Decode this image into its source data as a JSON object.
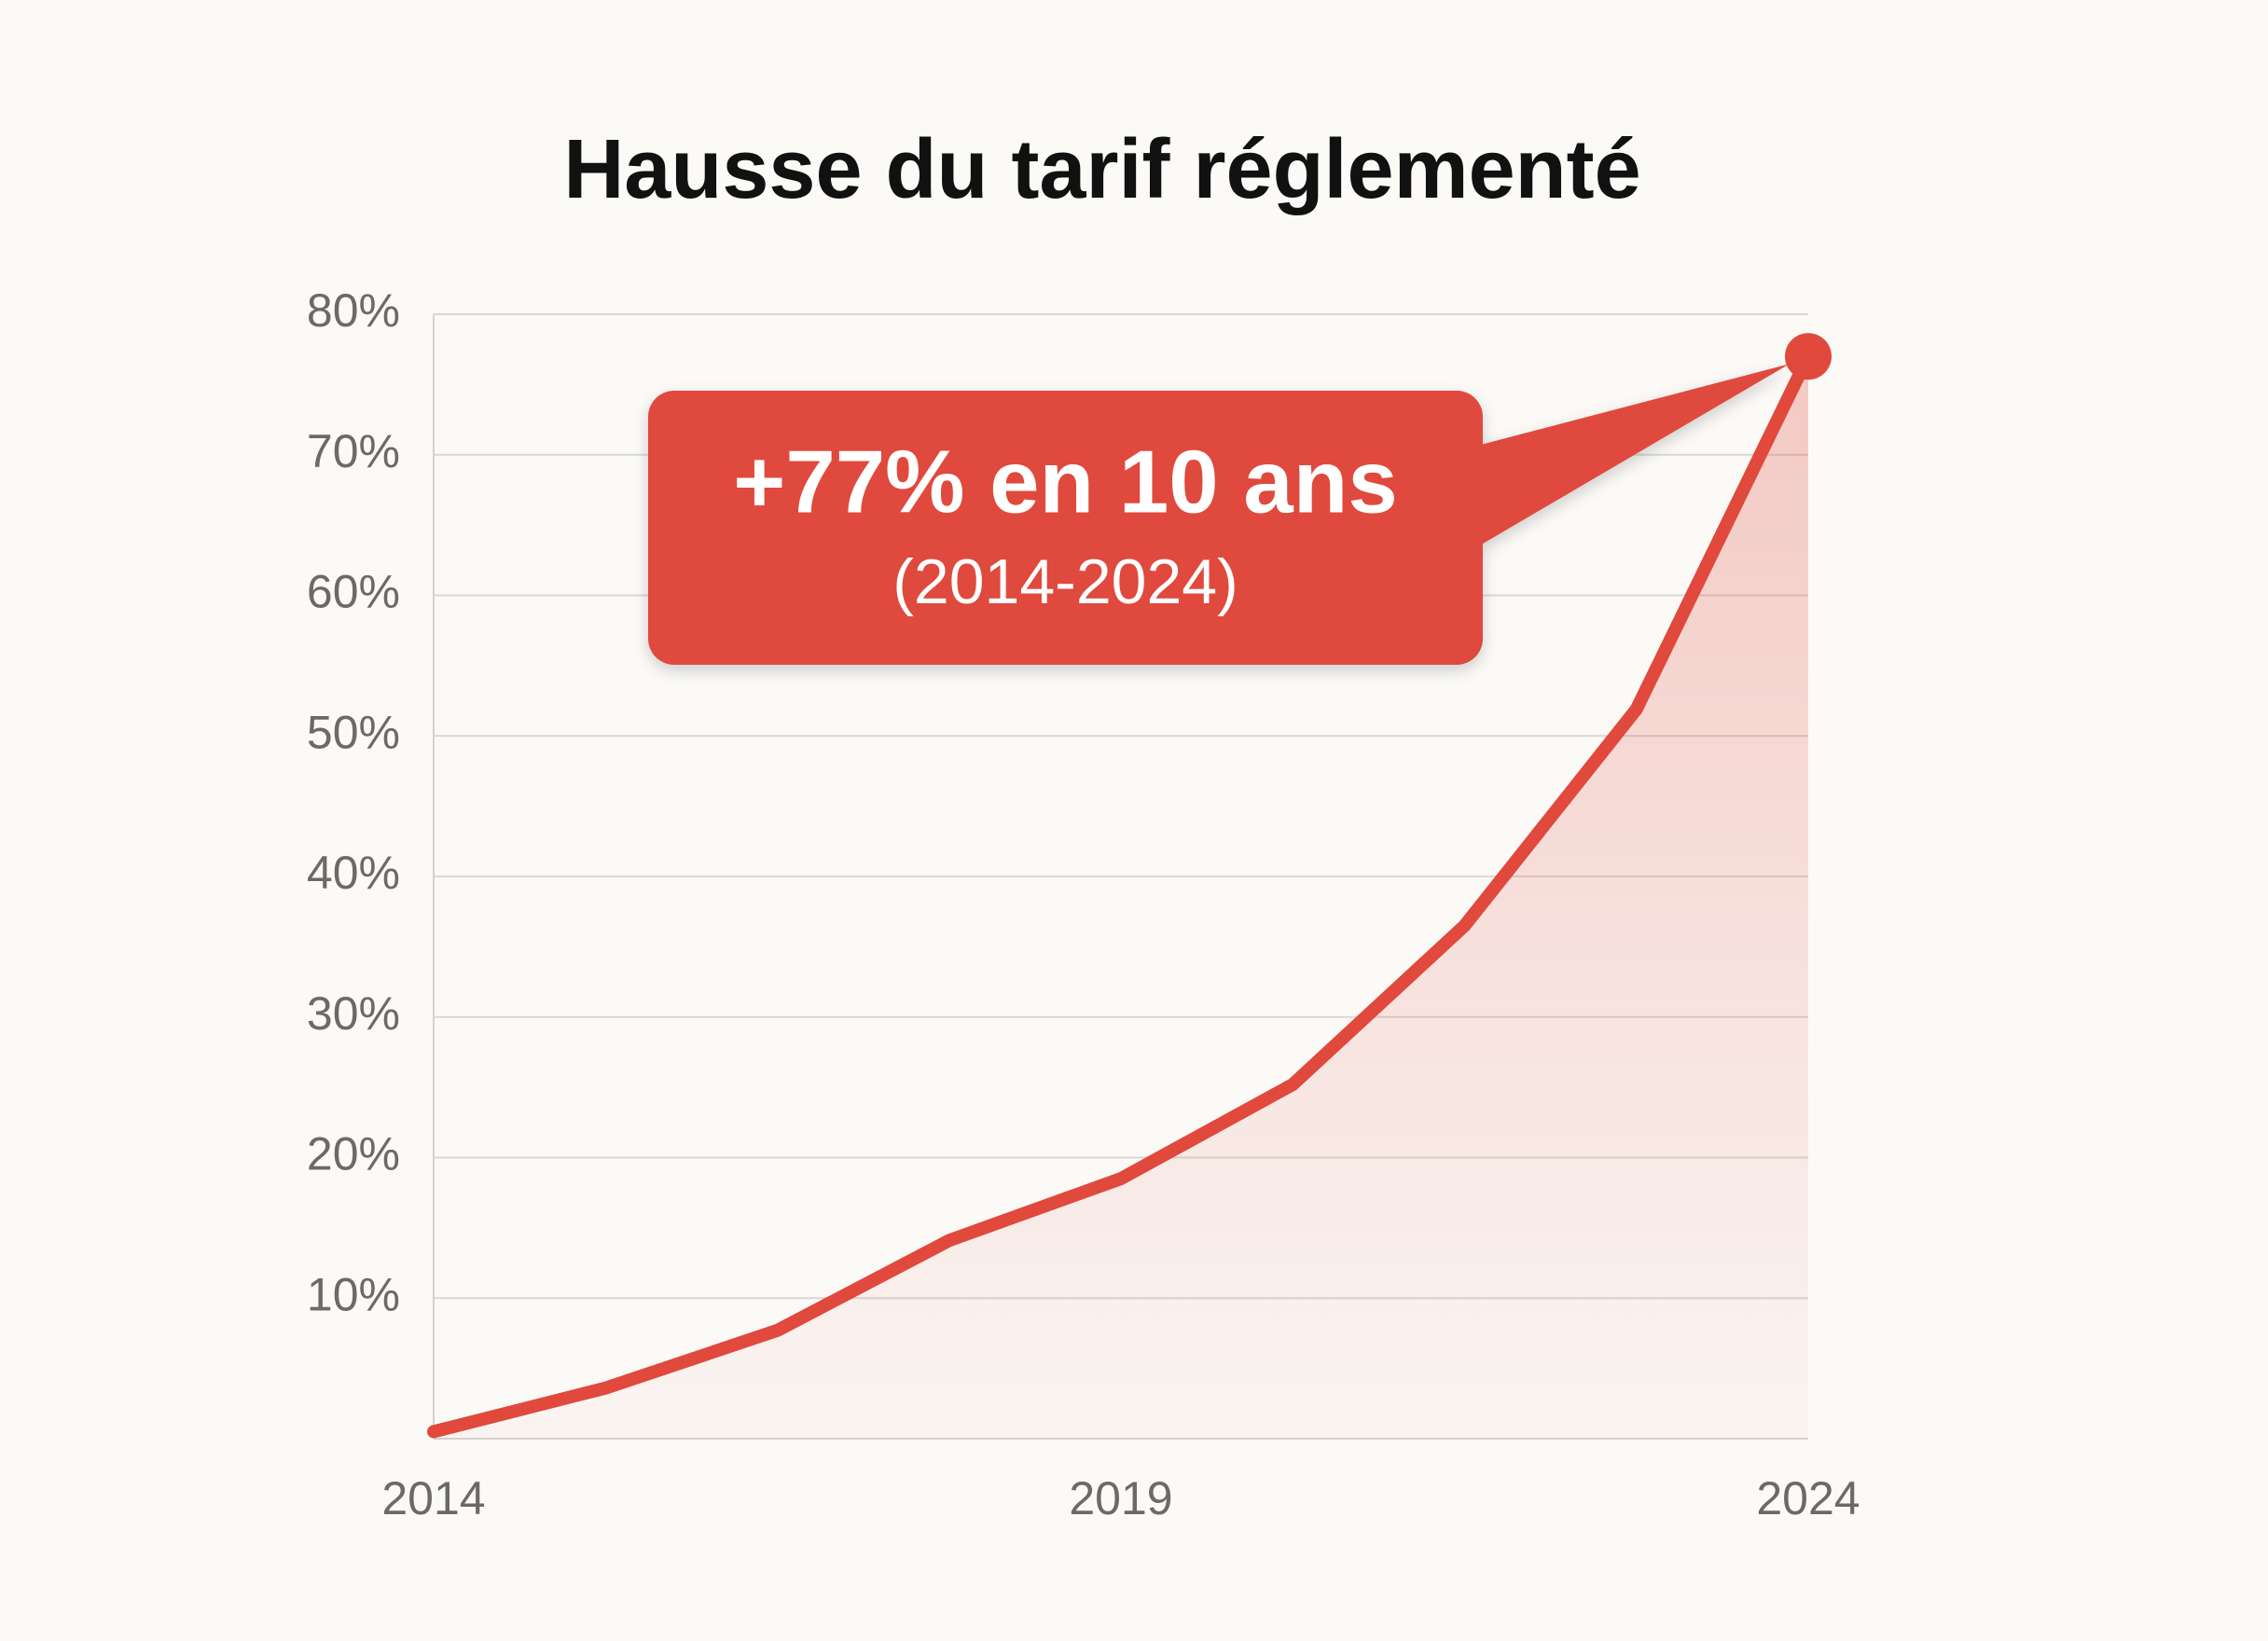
{
  "chart_data": {
    "type": "line",
    "title": "Hausse du tarif réglementé",
    "x": [
      2014,
      2015.25,
      2016.5,
      2017.75,
      2019,
      2020.25,
      2021.5,
      2022.75,
      2024
    ],
    "values": [
      0.5,
      3.6,
      7.7,
      14.1,
      18.5,
      25.2,
      36.5,
      51.9,
      77
    ],
    "color": "#e0493c",
    "annotation": {
      "text": "+77% en 10 ans",
      "subtext": "(2014-2024)"
    },
    "xlim": [
      2014,
      2024
    ],
    "xticks": [
      2014,
      2019,
      2024
    ],
    "ylim": [
      0,
      80
    ],
    "yticks": [
      {
        "value": 10,
        "label": "10%"
      },
      {
        "value": 20,
        "label": "20%"
      },
      {
        "value": 30,
        "label": "30%"
      },
      {
        "value": 40,
        "label": "40%"
      },
      {
        "value": 50,
        "label": "50%"
      },
      {
        "value": 60,
        "label": "60%"
      },
      {
        "value": 70,
        "label": "70%"
      },
      {
        "value": 80,
        "label": "80%"
      }
    ],
    "grid": true
  }
}
